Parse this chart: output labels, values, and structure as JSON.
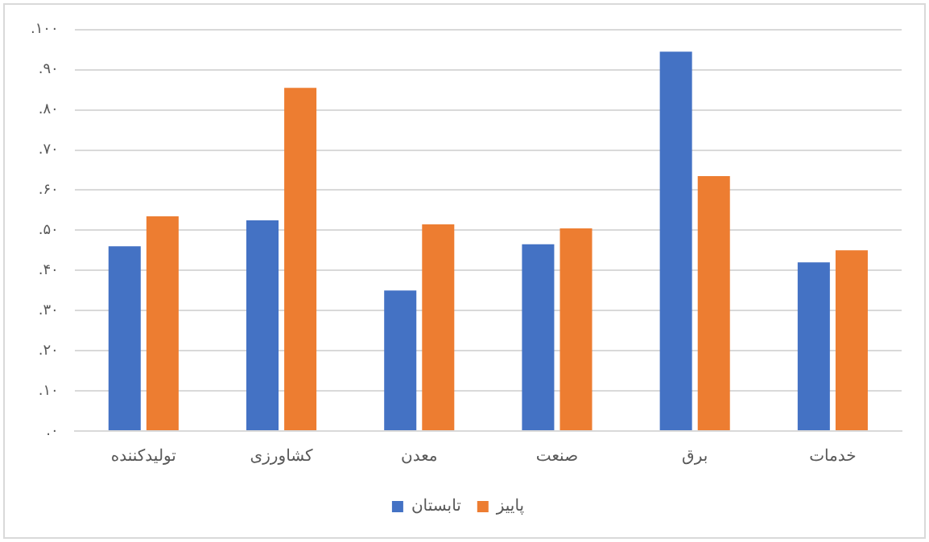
{
  "chart_data": {
    "type": "bar",
    "categories": [
      "تولیدکننده",
      "کشاورزی",
      "معدن",
      "صنعت",
      "برق",
      "خدمات"
    ],
    "series": [
      {
        "name": "تابستان",
        "color": "#4472c4",
        "values": [
          46,
          52.5,
          35,
          46.5,
          94.5,
          42
        ]
      },
      {
        "name": "پاییز",
        "color": "#ed7d31",
        "values": [
          53.5,
          85.5,
          51.5,
          50.5,
          63.5,
          45
        ]
      }
    ],
    "ylim": [
      0,
      100
    ],
    "yticks": [
      {
        "value": 0,
        "label": "۰."
      },
      {
        "value": 10,
        "label": "۱۰."
      },
      {
        "value": 20,
        "label": "۲۰."
      },
      {
        "value": 30,
        "label": "۳۰."
      },
      {
        "value": 40,
        "label": "۴۰."
      },
      {
        "value": 50,
        "label": "۵۰."
      },
      {
        "value": 60,
        "label": "۶۰."
      },
      {
        "value": 70,
        "label": "۷۰."
      },
      {
        "value": 80,
        "label": "۸۰."
      },
      {
        "value": 90,
        "label": "۹۰."
      },
      {
        "value": 100,
        "label": "۱۰۰."
      }
    ],
    "grid": "y",
    "legend": "bottom"
  }
}
